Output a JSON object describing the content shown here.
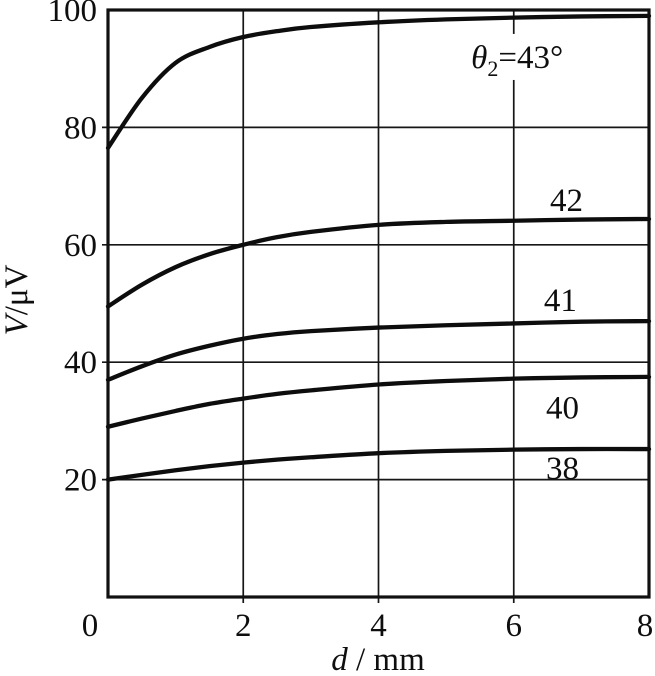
{
  "figure": {
    "background": "#ffffff",
    "ink_color": "#101010"
  },
  "chart_data": {
    "type": "line",
    "title": "",
    "xlabel": "d / mm",
    "xlabel_parts": {
      "italic": "d",
      "rest": " / mm"
    },
    "ylabel": "V/μV",
    "ylabel_parts": {
      "italic": "V",
      "rest": "/μV"
    },
    "xlim": [
      0,
      8
    ],
    "ylim": [
      0,
      100
    ],
    "xticks": [
      0,
      2,
      4,
      6,
      8
    ],
    "yticks": [
      20,
      40,
      60,
      80,
      100
    ],
    "grid": true,
    "legend_position": "inline-curve-labels",
    "x": [
      0,
      0.5,
      1,
      1.5,
      2,
      2.5,
      3,
      4,
      5,
      6,
      7,
      8
    ],
    "series": [
      {
        "name": "43",
        "label": "θ2=43°",
        "values": [
          76.5,
          85.0,
          91.0,
          93.7,
          95.4,
          96.4,
          97.1,
          97.9,
          98.4,
          98.7,
          98.9,
          99.0
        ]
      },
      {
        "name": "42",
        "label": "42",
        "values": [
          49.5,
          53.2,
          56.2,
          58.4,
          60.0,
          61.3,
          62.2,
          63.4,
          63.9,
          64.1,
          64.3,
          64.4
        ]
      },
      {
        "name": "41",
        "label": "41",
        "values": [
          37.0,
          39.3,
          41.3,
          42.8,
          44.0,
          44.8,
          45.3,
          45.9,
          46.3,
          46.6,
          46.9,
          47.0
        ]
      },
      {
        "name": "40",
        "label": "40",
        "values": [
          29.0,
          30.4,
          31.7,
          32.9,
          33.8,
          34.6,
          35.2,
          36.2,
          36.8,
          37.2,
          37.4,
          37.5
        ]
      },
      {
        "name": "38",
        "label": "38",
        "values": [
          20.0,
          20.8,
          21.6,
          22.3,
          22.9,
          23.4,
          23.8,
          24.5,
          24.9,
          25.1,
          25.2,
          25.2
        ]
      }
    ],
    "annotations": [
      {
        "name": "series-label-43",
        "text": "θ2=43°",
        "parts": {
          "prefix": "θ",
          "sub": "2",
          "suffix": "=43°"
        },
        "x": 6.05,
        "y": 92.0,
        "bg": true
      },
      {
        "name": "series-label-42",
        "text": "42",
        "x": 6.78,
        "y": 67.6
      },
      {
        "name": "series-label-41",
        "text": "41",
        "x": 6.69,
        "y": 50.6
      },
      {
        "name": "series-label-40",
        "text": "40",
        "x": 6.72,
        "y": 32.3
      },
      {
        "name": "series-label-38",
        "text": "38",
        "x": 6.72,
        "y": 22.0
      }
    ]
  }
}
